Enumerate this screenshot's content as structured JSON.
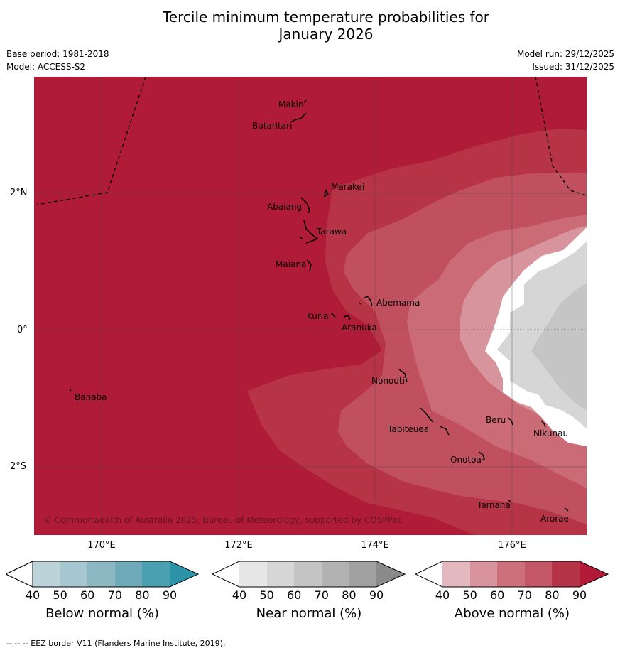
{
  "title_line1": "Tercile minimum temperature probabilities for",
  "title_line2": "January 2026",
  "base_period": "Base period: 1981-2018",
  "model": "Model: ACCESS-S2",
  "model_run": "Model run: 29/12/2025",
  "issued": "Issued: 31/12/2025",
  "copyright": "© Commonwealth of Australia 2025, Bureau of Meteorology, supported by COSPPac",
  "lat_labels": [
    "2°N",
    "0°",
    "2°S"
  ],
  "lon_labels": [
    "170°E",
    "172°E",
    "174°E",
    "176°E"
  ],
  "places": {
    "makin": "Makin",
    "butaritari": "Butaritari",
    "marakei": "Marakei",
    "abaiang": "Abaiang",
    "tarawa": "Tarawa",
    "maiana": "Maiana",
    "abemama": "Abemama",
    "kuria": "Kuria",
    "aranuka": "Aranuka",
    "nonouti": "Nonouti",
    "banaba": "Banaba",
    "tabiteuea": "Tabiteuea",
    "beru": "Beru",
    "nikunau": "Nikunau",
    "onotoa": "Onotoa",
    "tamana": "Tamana",
    "arorae": "Arorae"
  },
  "colorbars": [
    {
      "title": "Below normal (%)",
      "ticks": [
        "40",
        "50",
        "60",
        "70",
        "80",
        "90"
      ],
      "colors": [
        "#ffffff",
        "#bdd3da",
        "#a6c7cf",
        "#8bb8c3",
        "#6eaab7",
        "#4aa0b1",
        "#2c93a8"
      ]
    },
    {
      "title": "Near normal (%)",
      "ticks": [
        "40",
        "50",
        "60",
        "70",
        "80",
        "90"
      ],
      "colors": [
        "#ffffff",
        "#e7e7e7",
        "#d6d6d6",
        "#c4c4c4",
        "#b2b2b2",
        "#a0a0a0",
        "#8a8a8a"
      ]
    },
    {
      "title": "Above normal (%)",
      "ticks": [
        "40",
        "50",
        "60",
        "70",
        "80",
        "90"
      ],
      "colors": [
        "#ffffff",
        "#e4b8bf",
        "#d9939c",
        "#cd707b",
        "#c35765",
        "#b63448",
        "#b31a37"
      ]
    }
  ],
  "footnote": "--  --  -- EEZ border V11 (Flanders Marine Institute, 2019).",
  "colors": {
    "c90": "#b01c37",
    "c80": "#b73346",
    "c70": "#c1505f",
    "c60": "#ca6b76",
    "c50": "#d8949d",
    "near50": "#d6d6d6",
    "near60": "#c5c5c5"
  }
}
